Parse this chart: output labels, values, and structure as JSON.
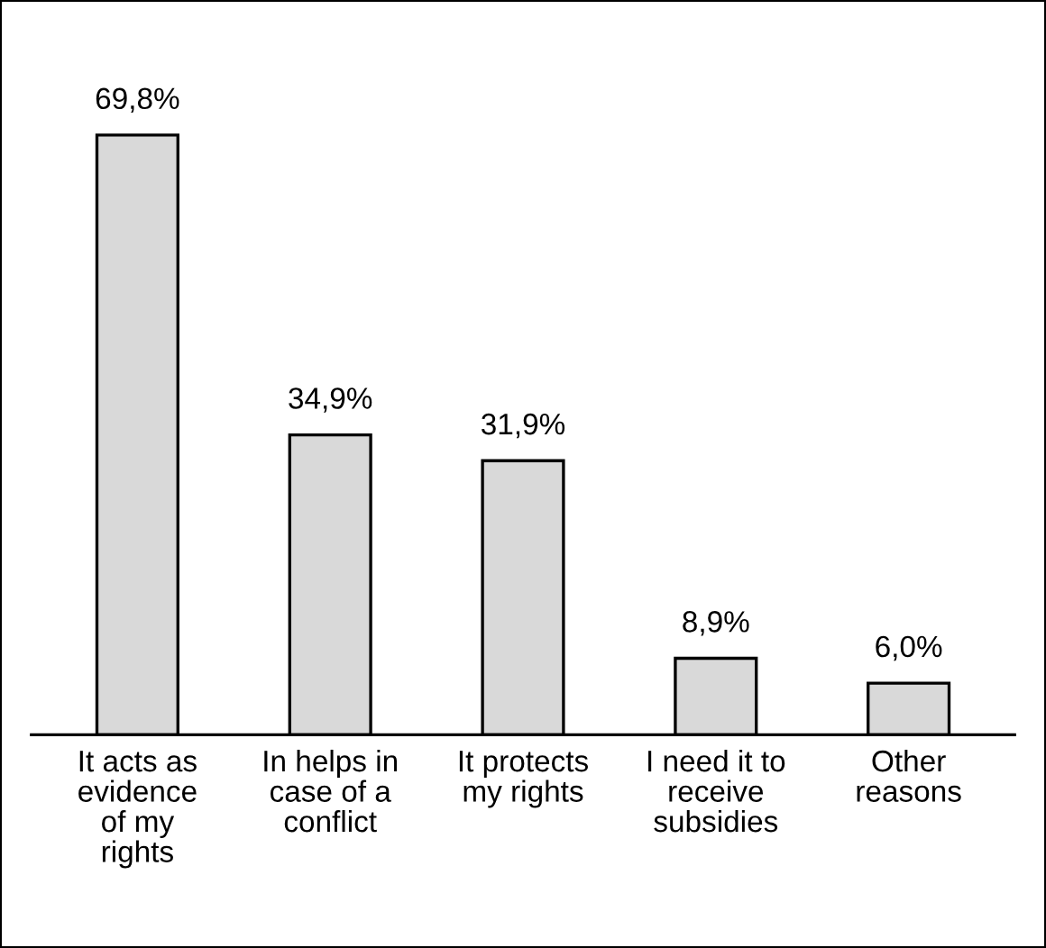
{
  "chart_data": {
    "type": "bar",
    "categories": [
      "It acts as\nevidence\nof my\nrights",
      "In helps in\ncase of a\nconflict",
      "It protects\nmy rights",
      "I need it to\nreceive\nsubsidies",
      "Other\nreasons"
    ],
    "values": [
      69.8,
      34.9,
      31.9,
      8.9,
      6.0
    ],
    "value_labels": [
      "69,8%",
      "34,9%",
      "31,9%",
      "8,9%",
      "6,0%"
    ],
    "color": "#d9d9d9",
    "grid": false,
    "legend": false
  }
}
